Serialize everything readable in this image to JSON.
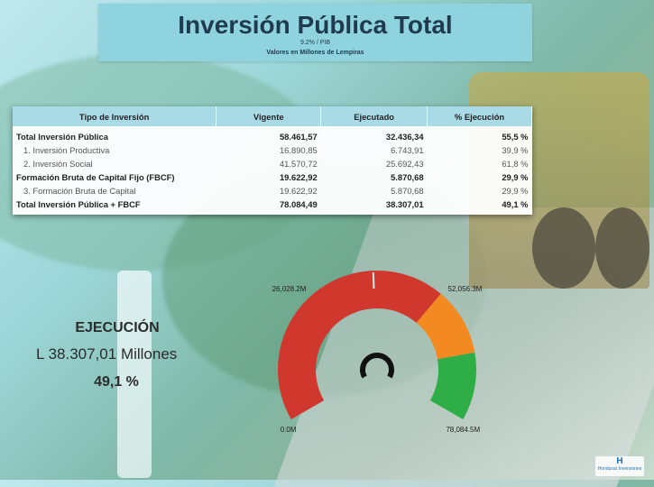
{
  "header": {
    "title": "Inversión Pública Total",
    "subtitle_pib": "9.2% / PIB",
    "subtitle_units": "Valores en Millones de Lempiras"
  },
  "table": {
    "columns": [
      "Tipo de Inversión",
      "Vigente",
      "Ejecutado",
      "% Ejecución"
    ],
    "rows": [
      {
        "label": "Total Inversión Pública",
        "vigente": "58.461,57",
        "ejecutado": "32.436,34",
        "pct": "55,5 %",
        "style": "bold"
      },
      {
        "label": "1. Inversión Productiva",
        "vigente": "16.890,85",
        "ejecutado": "6.743,91",
        "pct": "39,9 %",
        "style": "sub"
      },
      {
        "label": "2. Inversión Social",
        "vigente": "41.570,72",
        "ejecutado": "25.692,43",
        "pct": "61,8 %",
        "style": "sub"
      },
      {
        "label": "Formación Bruta de Capital Fijo (FBCF)",
        "vigente": "19.622,92",
        "ejecutado": "5.870,68",
        "pct": "29,9 %",
        "style": "bold"
      },
      {
        "label": "3. Formación Bruta de Capital",
        "vigente": "19.622,92",
        "ejecutado": "5.870,68",
        "pct": "29,9 %",
        "style": "sub"
      },
      {
        "label": "Total Inversión Pública + FBCF",
        "vigente": "78.084,49",
        "ejecutado": "38.307,01",
        "pct": "49,1 %",
        "style": "bold"
      }
    ]
  },
  "execution": {
    "title": "EJECUCIÓN",
    "currency": "L",
    "amount": "38.307,01",
    "unit": "Millones",
    "pct": "49,1 %"
  },
  "chart_data": {
    "type": "gauge",
    "min": 0,
    "max": 78084.5,
    "value": 38307.01,
    "bands": [
      {
        "from": 0,
        "to": 52056.3,
        "color": "#d0382e"
      },
      {
        "from": 52056.3,
        "to": 65070.4,
        "color": "#f28a21"
      },
      {
        "from": 65070.4,
        "to": 78084.5,
        "color": "#2fae48"
      }
    ],
    "labels": {
      "min": "0.0M",
      "max": "78,084.5M",
      "tick1": "26,028.2M",
      "tick2": "52,056.3M"
    },
    "tick_values": [
      26028.2,
      52056.3
    ]
  },
  "logo": {
    "letter": "H",
    "text": "Honduras Inversiones"
  }
}
